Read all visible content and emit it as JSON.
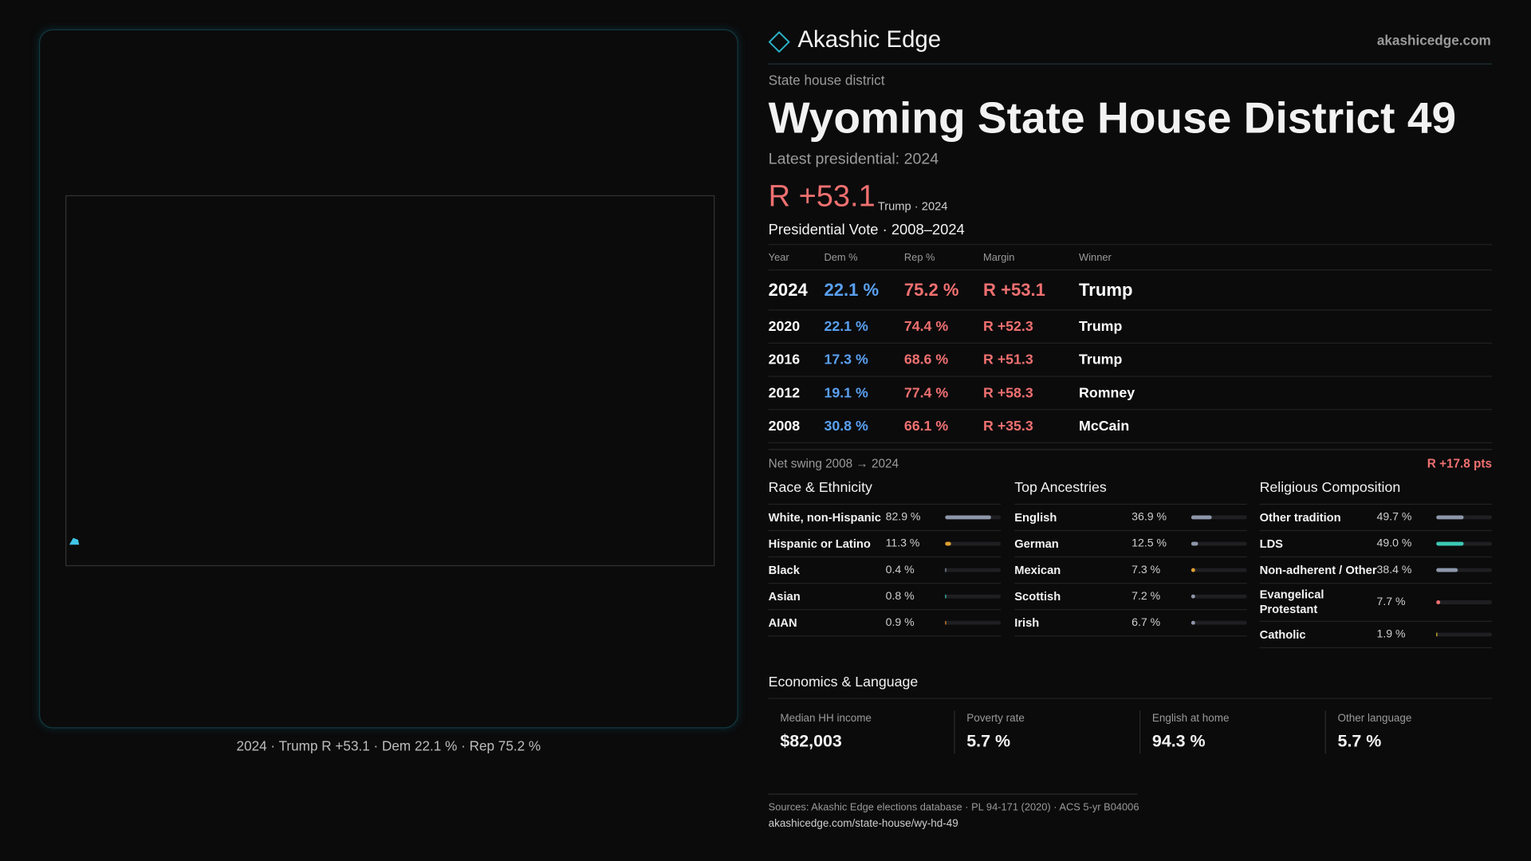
{
  "header": {
    "brand": "Akashic Edge",
    "site": "akashicedge.com"
  },
  "map": {
    "caption": "2024 · Trump R +53.1 · Dem 22.1 % · Rep 75.2 %"
  },
  "district": {
    "kind": "State house district",
    "title": "Wyoming State House District 49",
    "latest": "Latest presidential: 2024",
    "margin": "R +53.1",
    "margin_note": "Trump · 2024"
  },
  "table": {
    "title": "Presidential Vote · 2008–2024",
    "columns": [
      "Year",
      "Dem %",
      "Rep %",
      "Margin",
      "Winner"
    ],
    "rows": [
      [
        "2024",
        "22.1 %",
        "75.2 %",
        "R +53.1",
        "Trump"
      ],
      [
        "2020",
        "22.1 %",
        "74.4 %",
        "R +52.3",
        "Trump"
      ],
      [
        "2016",
        "17.3 %",
        "68.6 %",
        "R +51.3",
        "Trump"
      ],
      [
        "2012",
        "19.1 %",
        "77.4 %",
        "R +58.3",
        "Romney"
      ],
      [
        "2008",
        "30.8 %",
        "66.1 %",
        "R +35.3",
        "McCain"
      ]
    ]
  },
  "swing": {
    "label": "Net swing 2008 → 2024",
    "value": "R +17.8 pts"
  },
  "demographics": [
    {
      "title": "Race & Ethnicity",
      "rows": [
        {
          "name": "White, non-Hispanic",
          "value": 82.9,
          "label": "82.9 %",
          "color": "#8e97aa"
        },
        {
          "name": "Hispanic or Latino",
          "value": 11.3,
          "label": "11.3 %",
          "color": "#e0a030"
        },
        {
          "name": "Black",
          "value": 0.4,
          "label": "0.4 %",
          "color": "#8e97aa"
        },
        {
          "name": "Asian",
          "value": 0.8,
          "label": "0.8 %",
          "color": "#3cc8b4"
        },
        {
          "name": "AIAN",
          "value": 0.9,
          "label": "0.9 %",
          "color": "#e08a30"
        }
      ]
    },
    {
      "title": "Top Ancestries",
      "rows": [
        {
          "name": "English",
          "value": 36.9,
          "label": "36.9 %",
          "color": "#8e97aa"
        },
        {
          "name": "German",
          "value": 12.5,
          "label": "12.5 %",
          "color": "#8e97aa"
        },
        {
          "name": "Mexican",
          "value": 7.3,
          "label": "7.3 %",
          "color": "#e0a030"
        },
        {
          "name": "Scottish",
          "value": 7.2,
          "label": "7.2 %",
          "color": "#8e97aa"
        },
        {
          "name": "Irish",
          "value": 6.7,
          "label": "6.7 %",
          "color": "#8e97aa"
        }
      ]
    },
    {
      "title": "Religious Composition",
      "rows": [
        {
          "name": "Other tradition",
          "value": 49.7,
          "label": "49.7 %",
          "color": "#8e97aa"
        },
        {
          "name": "LDS",
          "value": 49.0,
          "label": "49.0 %",
          "color": "#3cc8b4"
        },
        {
          "name": "Non-adherent / Other",
          "value": 38.4,
          "label": "38.4 %",
          "color": "#8e97aa"
        },
        {
          "name": "Evangelical Protestant",
          "value": 7.7,
          "label": "7.7 %",
          "color": "#f07070"
        },
        {
          "name": "Catholic",
          "value": 1.9,
          "label": "1.9 %",
          "color": "#e0c030"
        }
      ]
    }
  ],
  "economics": {
    "title": "Economics & Language",
    "cards": [
      {
        "label": "Median HH income",
        "value": "$82,003"
      },
      {
        "label": "Poverty rate",
        "value": "5.7 %"
      },
      {
        "label": "English at home",
        "value": "94.3 %"
      },
      {
        "label": "Other language",
        "value": "5.7 %"
      }
    ]
  },
  "footer": {
    "sources": "Sources: Akashic Edge elections database · PL 94-171 (2020) · ACS 5-yr B04006",
    "url": "akashicedge.com/state-house/wy-hd-49"
  }
}
